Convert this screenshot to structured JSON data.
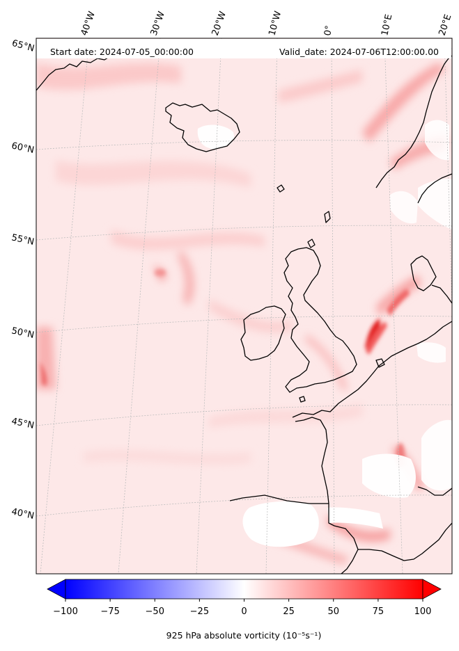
{
  "header": {
    "start_date": "Start date: 2024-07-05_00:00:00",
    "valid_date": "Valid_date: 2024-07-06T12:00:00.00"
  },
  "map": {
    "lon_labels": [
      "40°W",
      "30°W",
      "20°W",
      "10°W",
      "0°",
      "10°E",
      "20°E"
    ],
    "lat_labels": [
      "65°N",
      "60°N",
      "55°N",
      "50°N",
      "45°N",
      "40°N"
    ],
    "colors": {
      "coastline": "#000000",
      "gridline": "#bdbdbd",
      "background_field": "#fde7e7",
      "land_white": "#ffffff"
    }
  },
  "colorbar": {
    "min": -100,
    "max": 100,
    "tick_labels": [
      "−100",
      "−75",
      "−50",
      "−25",
      "0",
      "25",
      "50",
      "75",
      "100"
    ],
    "extend": "both",
    "colormap": "bwr",
    "label": "925 hPa absolute vorticity (10⁻⁵s⁻¹)"
  }
}
